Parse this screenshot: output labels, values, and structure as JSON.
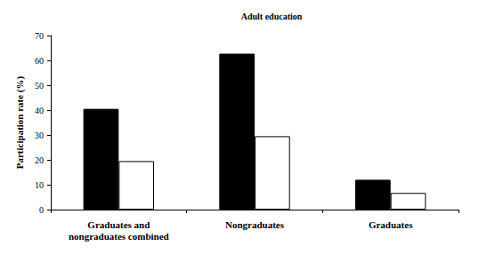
{
  "chart_data": {
    "type": "bar",
    "title": "Adult education",
    "y_label": "Participation rate (%)",
    "categories": [
      "Graduates and\nnongraduates combined",
      "Nongraduates",
      "Graduates"
    ],
    "series": [
      {
        "color": "#000000",
        "values": [
          40.5,
          62.7,
          12.0
        ]
      },
      {
        "color": "#ffffff",
        "values": [
          19.5,
          29.5,
          6.7
        ]
      }
    ],
    "ylim": [
      0,
      70
    ],
    "yticks": [
      0,
      10,
      20,
      30,
      40,
      50,
      60,
      70
    ],
    "grid": false
  }
}
